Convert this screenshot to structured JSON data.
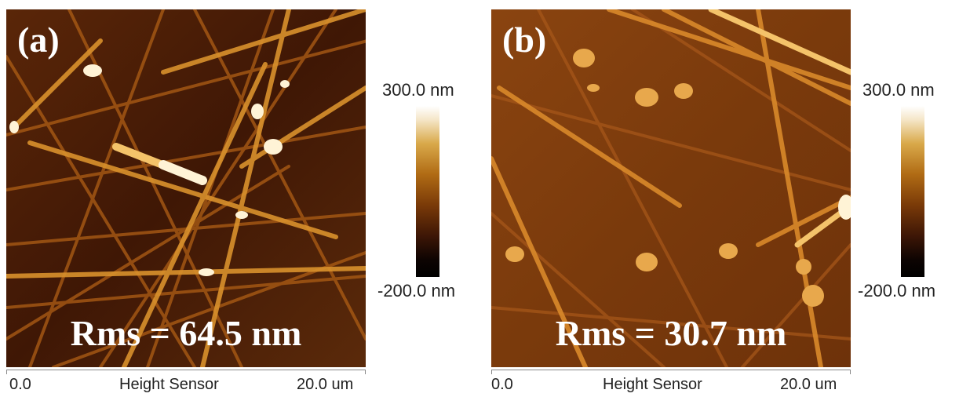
{
  "panels": [
    {
      "label": "(a)",
      "rms_text": "Rms = 64.5 nm",
      "x_axis": {
        "start": "0.0",
        "title": "Height Sensor",
        "end": "20.0 um"
      },
      "colorbar": {
        "max": "300.0 nm",
        "min": "-200.0 nm"
      }
    },
    {
      "label": "(b)",
      "rms_text": "Rms = 30.7 nm",
      "x_axis": {
        "start": "0.0",
        "title": "Height Sensor",
        "end": "20.0 um"
      },
      "colorbar": {
        "max": "300.0 nm",
        "min": "-200.0 nm"
      }
    }
  ],
  "colors": {
    "afm_dark": "#3a1606",
    "afm_mid": "#7a3a0c",
    "afm_bright": "#d88a28",
    "afm_highlight": "#fff3d6"
  }
}
